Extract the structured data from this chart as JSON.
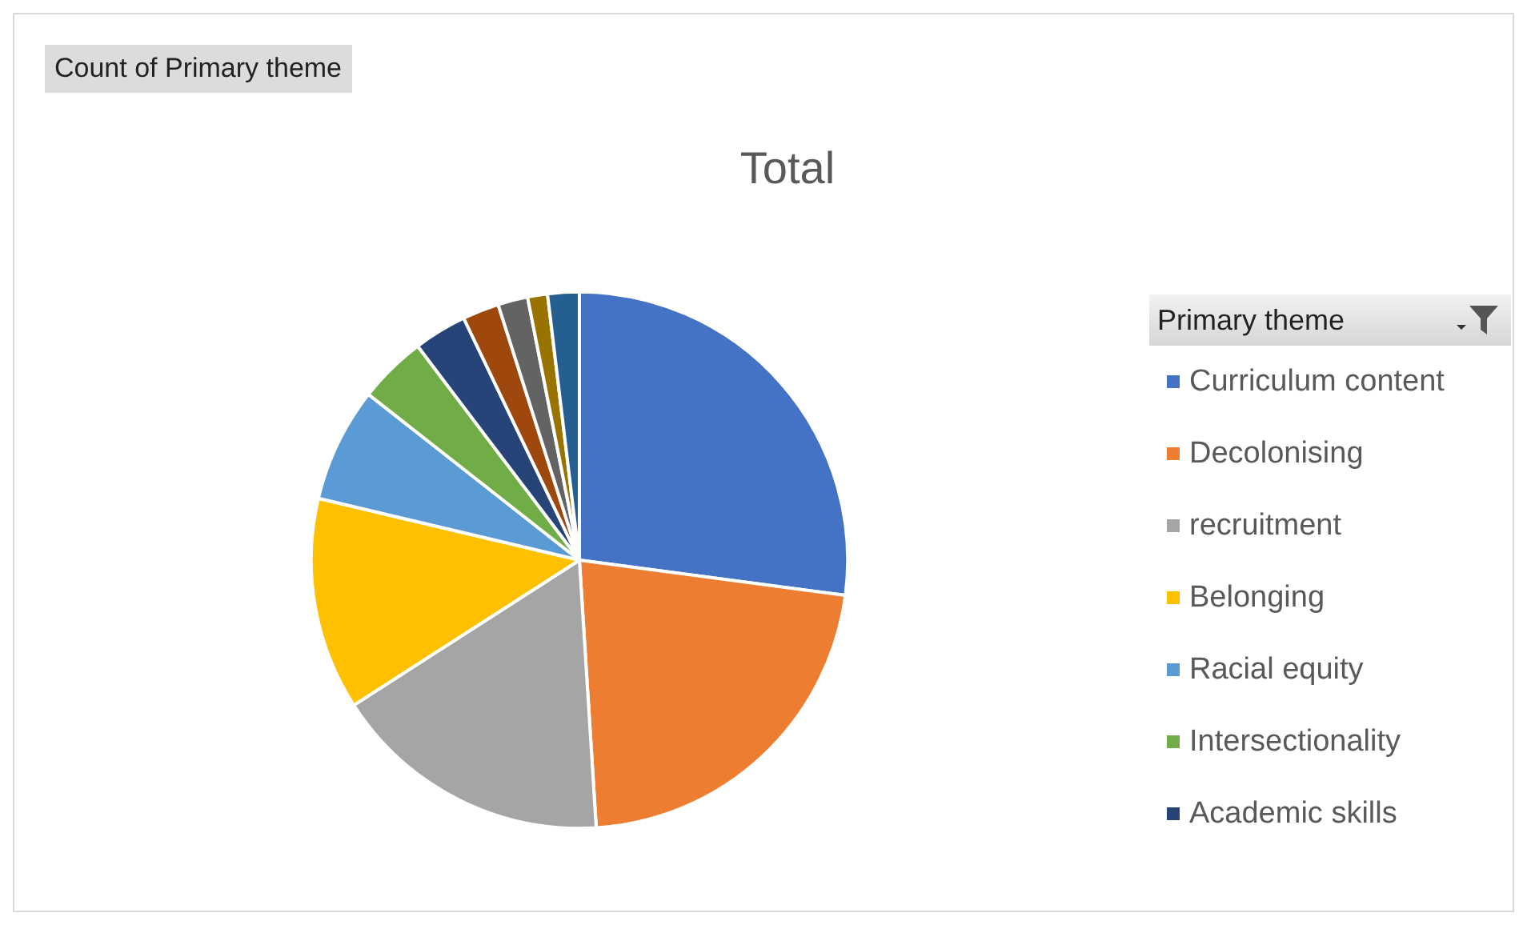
{
  "chart_data": {
    "type": "pie",
    "title": "Total",
    "legend_title": "Primary theme",
    "annotations": [
      "Count of Primary theme"
    ],
    "legend": "right",
    "categories": [
      "Curriculum content",
      "Decolonising",
      "recruitment",
      "Belonging",
      "Racial equity",
      "Intersectionality",
      "Academic skills",
      null,
      null,
      null,
      null
    ],
    "values": [
      27.1,
      21.9,
      16.9,
      12.8,
      6.9,
      4.1,
      3.2,
      2.2,
      1.8,
      1.2,
      1.9
    ],
    "colors": [
      "#4472c4",
      "#ed7d31",
      "#a5a5a5",
      "#ffc000",
      "#5b9bd5",
      "#70ad47",
      "#264478",
      "#9e480e",
      "#636363",
      "#997300",
      "#255e91"
    ]
  }
}
